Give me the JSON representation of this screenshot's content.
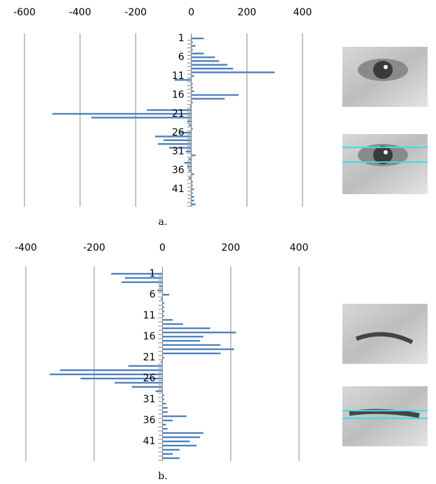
{
  "chart_data": [
    {
      "type": "bar",
      "orientation": "horizontal",
      "caption": "a.",
      "color": "#4f81bd",
      "grid": true,
      "xlim": [
        -600,
        400
      ],
      "xticks": [
        -600,
        -400,
        -200,
        0,
        200,
        400
      ],
      "categories": [
        "1",
        null,
        null,
        null,
        null,
        "6",
        null,
        null,
        null,
        null,
        "11",
        null,
        null,
        null,
        null,
        "16",
        null,
        null,
        null,
        null,
        "21",
        null,
        null,
        null,
        null,
        "26",
        null,
        null,
        null,
        null,
        "31",
        null,
        null,
        null,
        null,
        "36",
        null,
        null,
        null,
        null,
        "41",
        null,
        null,
        null,
        null
      ],
      "values": [
        45,
        5,
        15,
        5,
        45,
        85,
        100,
        130,
        150,
        300,
        10,
        -60,
        5,
        5,
        10,
        170,
        120,
        5,
        -5,
        -160,
        -500,
        -360,
        -15,
        -10,
        5,
        -40,
        -130,
        -100,
        -120,
        -80,
        -20,
        15,
        -10,
        -25,
        -15,
        -10,
        10,
        -10,
        5,
        5,
        10,
        5,
        10,
        10,
        15
      ]
    },
    {
      "type": "bar",
      "orientation": "horizontal",
      "caption": "b.",
      "color": "#4f81bd",
      "grid": true,
      "xlim": [
        -400,
        400
      ],
      "xticks": [
        -400,
        -200,
        0,
        200,
        400
      ],
      "categories": [
        "1",
        null,
        null,
        null,
        null,
        "6",
        null,
        null,
        null,
        null,
        "11",
        null,
        null,
        null,
        null,
        "16",
        null,
        null,
        null,
        null,
        "21",
        null,
        null,
        null,
        null,
        "26",
        null,
        null,
        null,
        null,
        "31",
        null,
        null,
        null,
        null,
        "36",
        null,
        null,
        null,
        null,
        "41",
        null,
        null,
        null,
        null
      ],
      "values": [
        -150,
        -110,
        -120,
        -10,
        -15,
        20,
        -5,
        5,
        5,
        5,
        5,
        30,
        60,
        140,
        215,
        120,
        110,
        170,
        210,
        170,
        5,
        -5,
        -100,
        -300,
        -330,
        -240,
        -140,
        -90,
        -20,
        5,
        5,
        10,
        15,
        15,
        70,
        30,
        10,
        15,
        120,
        110,
        80,
        100,
        50,
        30,
        50
      ]
    }
  ]
}
